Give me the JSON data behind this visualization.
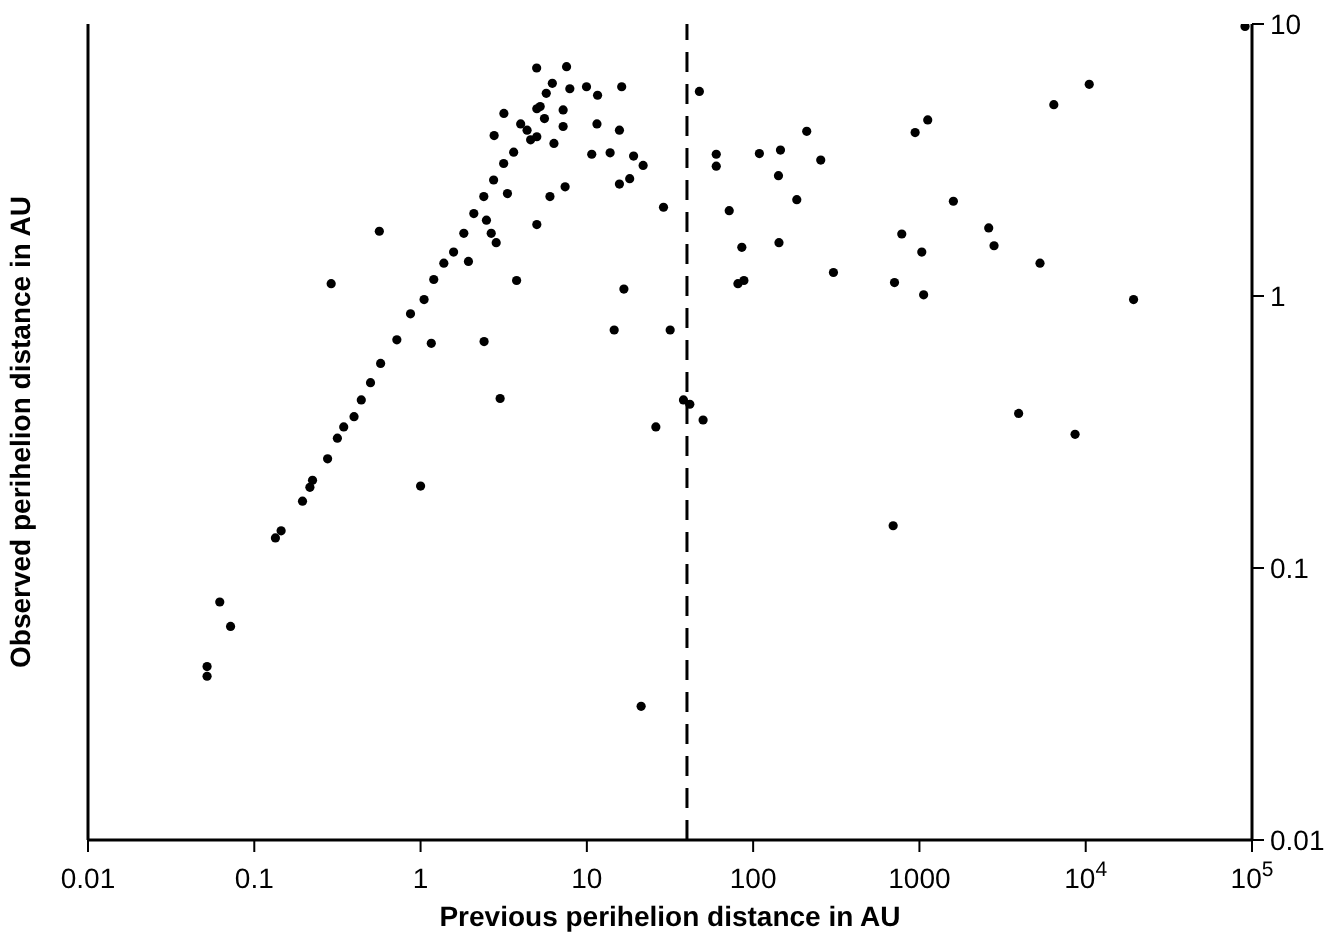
{
  "chart_data": {
    "type": "scatter",
    "xlabel": "Previous perihelion distance in AU",
    "ylabel": "Observed perihelion distance in AU",
    "log": "xy",
    "marker": "circle",
    "color": "#000000",
    "xlim": [
      0.01,
      100000
    ],
    "xticks": [
      0.01,
      0.1,
      1,
      10,
      100,
      1000,
      {
        "value": 10000,
        "label": "10$^{4}$"
      },
      {
        "value": 100000,
        "label": "10$^{5}$"
      }
    ],
    "ylim": [
      0.01,
      10
    ],
    "yticks": [
      0.01,
      0.1,
      1,
      10
    ],
    "ref_lines": [
      {
        "axis": "x",
        "value": 40,
        "line_style": "dashed",
        "color": "#000000"
      }
    ],
    "x": [
      0.052,
      0.052,
      0.062,
      0.072,
      0.134,
      0.145,
      0.195,
      0.216,
      0.224,
      0.276,
      0.316,
      0.345,
      0.398,
      0.44,
      0.5,
      0.575,
      0.72,
      0.87,
      1.05,
      1.2,
      1.38,
      1.58,
      1.82,
      2.09,
      2.4,
      2.75,
      3.16,
      3.63,
      4.37,
      5.24,
      5.7,
      6.2,
      1.0,
      21.2,
      26,
      50,
      695,
      3950,
      8630,
      0.565,
      0.29,
      1.16,
      2.41,
      3.01,
      1.94,
      2.49,
      2.66,
      2.85,
      3.33,
      3.78,
      2.77,
      3.17,
      4.0,
      4.59,
      4.99,
      7.55,
      5.0,
      5.56,
      7.2,
      7.2,
      5.0,
      6.34,
      7.9,
      6.0,
      7.4,
      5.0,
      9.95,
      11.6,
      16.2,
      11.5,
      15.7,
      10.7,
      13.8,
      19.1,
      21.8,
      15.7,
      18.1,
      28.9,
      16.7,
      14.6,
      31.7,
      38.1,
      41.6,
      47.5,
      60,
      60,
      71.8,
      85.5,
      81,
      88,
      109,
      142,
      146,
      183,
      143,
      210,
      255,
      304,
      708,
      783,
      942,
      1122,
      1033,
      1060,
      1600,
      2610,
      2810,
      5310,
      6430,
      10500,
      19400,
      90800
    ],
    "values": [
      0.0434,
      0.04,
      0.075,
      0.061,
      0.129,
      0.137,
      0.176,
      0.198,
      0.21,
      0.252,
      0.3,
      0.33,
      0.36,
      0.415,
      0.48,
      0.565,
      0.69,
      0.86,
      0.97,
      1.15,
      1.32,
      1.45,
      1.7,
      2.01,
      2.32,
      2.67,
      3.07,
      3.38,
      4.07,
      4.97,
      5.56,
      6.05,
      0.2,
      0.031,
      0.33,
      0.35,
      0.143,
      0.37,
      0.31,
      1.73,
      1.11,
      0.67,
      0.68,
      0.42,
      1.34,
      1.9,
      1.7,
      1.57,
      2.38,
      1.14,
      3.89,
      4.69,
      4.29,
      3.75,
      6.89,
      6.97,
      4.88,
      4.49,
      4.83,
      4.2,
      3.85,
      3.64,
      5.78,
      2.32,
      2.52,
      1.83,
      5.88,
      5.47,
      5.88,
      4.29,
      4.07,
      3.32,
      3.36,
      3.27,
      3.02,
      2.58,
      2.7,
      2.12,
      1.06,
      0.75,
      0.75,
      0.415,
      0.4,
      5.65,
      3.32,
      3.0,
      2.06,
      1.51,
      1.11,
      1.14,
      3.34,
      2.77,
      3.44,
      2.26,
      1.57,
      4.03,
      3.16,
      1.22,
      1.12,
      1.69,
      3.99,
      4.44,
      1.45,
      1.01,
      2.23,
      1.78,
      1.53,
      1.32,
      5.05,
      6.0,
      0.97,
      9.8
    ]
  }
}
